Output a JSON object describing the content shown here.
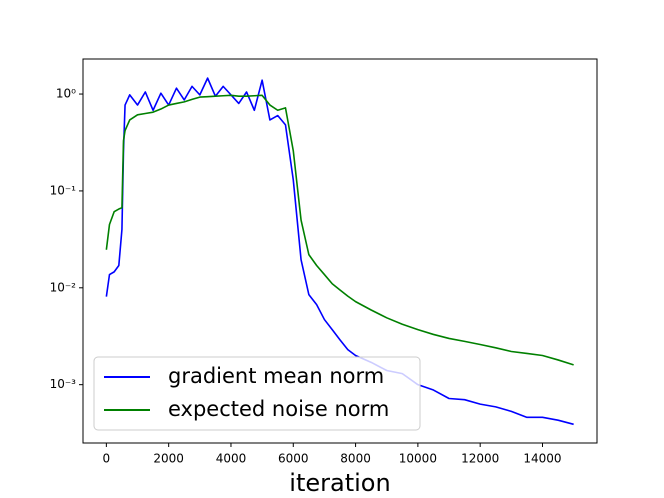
{
  "chart_data": {
    "type": "line",
    "xlabel": "iteration",
    "x": [
      0,
      100,
      250,
      400,
      500,
      550,
      600,
      750,
      1000,
      1250,
      1500,
      1750,
      2000,
      2250,
      2500,
      2750,
      3000,
      3250,
      3500,
      3750,
      4000,
      4250,
      4500,
      4750,
      5000,
      5250,
      5500,
      5750,
      6000,
      6250,
      6500,
      6750,
      7000,
      7250,
      7500,
      7750,
      8000,
      8500,
      9000,
      9500,
      10000,
      10500,
      11000,
      11500,
      12000,
      12500,
      13000,
      13500,
      14000,
      14500,
      15000
    ],
    "series": [
      {
        "name": "gradient mean norm",
        "color": "#0000ff",
        "values": [
          0.0081,
          0.0137,
          0.0146,
          0.017,
          0.04,
          0.26,
          0.77,
          0.98,
          0.77,
          1.05,
          0.68,
          1.02,
          0.77,
          1.15,
          0.87,
          1.2,
          0.98,
          1.46,
          0.95,
          1.2,
          0.98,
          0.8,
          1.05,
          0.68,
          1.39,
          0.54,
          0.6,
          0.48,
          0.13,
          0.0195,
          0.0085,
          0.0067,
          0.0047,
          0.0037,
          0.0029,
          0.0023,
          0.002,
          0.0017,
          0.0014,
          0.0013,
          0.001,
          0.00088,
          0.00072,
          0.0007,
          0.00063,
          0.00059,
          0.00053,
          0.00046,
          0.00046,
          0.00043,
          0.00039
        ]
      },
      {
        "name": "expected noise norm",
        "color": "#008000",
        "values": [
          0.0247,
          0.045,
          0.061,
          0.065,
          0.067,
          0.33,
          0.42,
          0.54,
          0.61,
          0.63,
          0.65,
          0.7,
          0.77,
          0.8,
          0.83,
          0.88,
          0.93,
          0.94,
          0.95,
          0.96,
          0.97,
          0.95,
          0.95,
          0.96,
          0.97,
          0.77,
          0.68,
          0.72,
          0.26,
          0.05,
          0.022,
          0.017,
          0.0137,
          0.011,
          0.0095,
          0.0082,
          0.0072,
          0.0059,
          0.0049,
          0.0042,
          0.0037,
          0.0033,
          0.003,
          0.0028,
          0.0026,
          0.0024,
          0.0022,
          0.0021,
          0.002,
          0.0018,
          0.0016
        ]
      }
    ],
    "xlim": [
      -750,
      15750
    ],
    "xticks": [
      0,
      2000,
      4000,
      6000,
      8000,
      10000,
      12000,
      14000
    ],
    "ylim": [
      0.00025,
      2.3
    ],
    "ylog": true,
    "yticks": [
      {
        "value": 0.001,
        "label": "10⁻³"
      },
      {
        "value": 0.01,
        "label": "10⁻²"
      },
      {
        "value": 0.1,
        "label": "10⁻¹"
      },
      {
        "value": 1,
        "label": "10⁰"
      }
    ],
    "legend": "lower left"
  }
}
